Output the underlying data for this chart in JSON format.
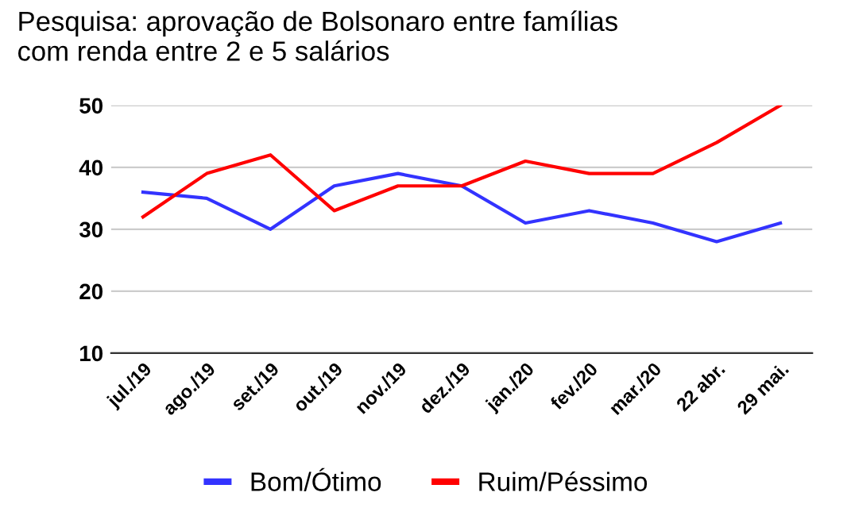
{
  "chart_data": {
    "type": "line",
    "title": "Pesquisa: aprovação de Bolsonaro entre famílias\ncom renda entre 2 e 5 salários",
    "categories": [
      "jul./19",
      "ago./19",
      "set./19",
      "out./19",
      "nov./19",
      "dez./19",
      "jan./20",
      "fev./20",
      "mar./20",
      "22 abr.",
      "29 mai."
    ],
    "series": [
      {
        "name": "Bom/Ótimo",
        "color": "#3333ff",
        "values": [
          36,
          35,
          30,
          37,
          39,
          37,
          31,
          33,
          31,
          28,
          31
        ]
      },
      {
        "name": "Ruim/Péssimo",
        "color": "#ff0000",
        "values": [
          32,
          39,
          42,
          33,
          37,
          37,
          41,
          39,
          39,
          44,
          50
        ]
      }
    ],
    "ylim": [
      10,
      50
    ],
    "yticks": [
      10,
      20,
      30,
      40,
      50
    ],
    "grid": "y",
    "legend": "bottom",
    "marker": "none",
    "line_style": "solid"
  }
}
